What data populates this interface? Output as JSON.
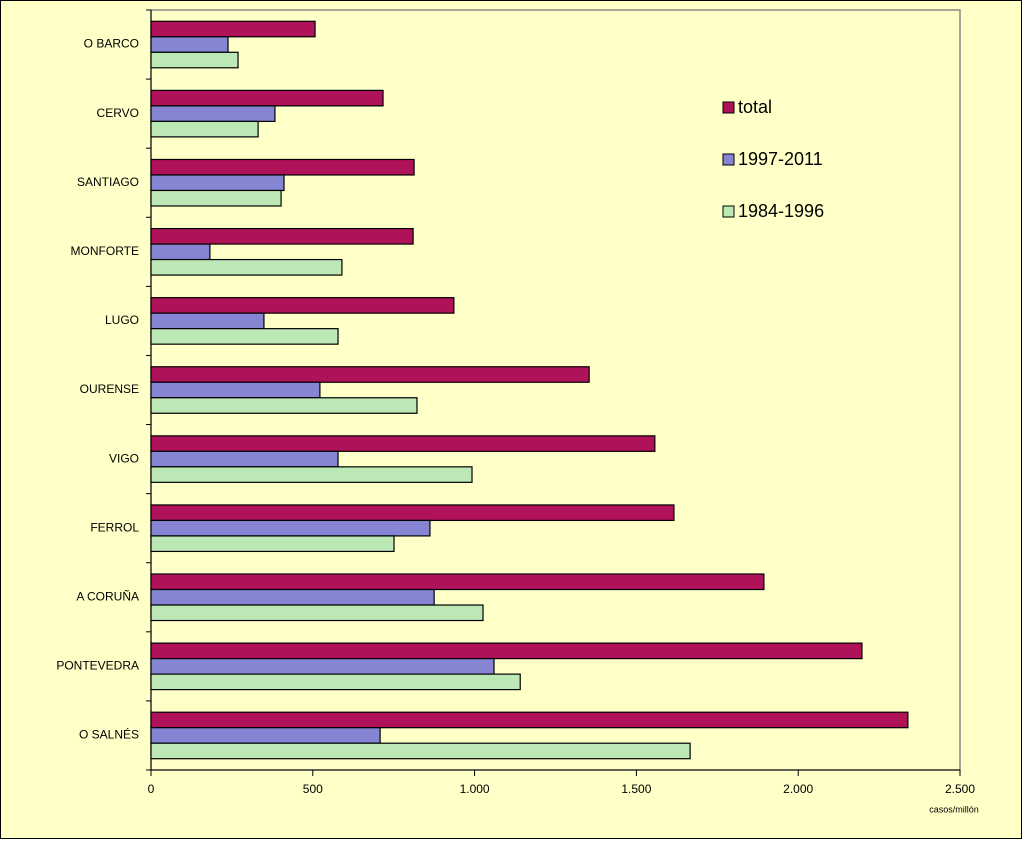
{
  "chart_data": {
    "type": "bar",
    "orientation": "horizontal",
    "categories": [
      "O BARCO",
      "CERVO",
      "SANTIAGO",
      "MONFORTE",
      "LUGO",
      "OURENSE",
      "VIGO",
      "FERROL",
      "A CORUÑA",
      "PONTEVEDRA",
      "O SALNÉS"
    ],
    "series": [
      {
        "name": "total",
        "color": "#b0125a",
        "values": [
          507,
          717,
          813,
          810,
          936,
          1354,
          1557,
          1616,
          1894,
          2197,
          2339
        ]
      },
      {
        "name": "1997-2011",
        "color": "#8585d3",
        "values": [
          238,
          383,
          411,
          182,
          349,
          522,
          578,
          862,
          875,
          1060,
          708
        ]
      },
      {
        "name": "1984-1996",
        "color": "#bbe8b4",
        "values": [
          269,
          331,
          402,
          590,
          578,
          822,
          992,
          751,
          1026,
          1141,
          1666
        ]
      }
    ],
    "x_label": "casos/millón",
    "xlim": [
      0,
      2500
    ],
    "xticks": [
      0,
      500,
      {
        "value": 1000,
        "label": "1.000"
      },
      {
        "value": 1500,
        "label": "1.500"
      },
      {
        "value": 2000,
        "label": "2.000"
      },
      {
        "value": 2500,
        "label": "2.500"
      }
    ],
    "legend": "upper right"
  }
}
